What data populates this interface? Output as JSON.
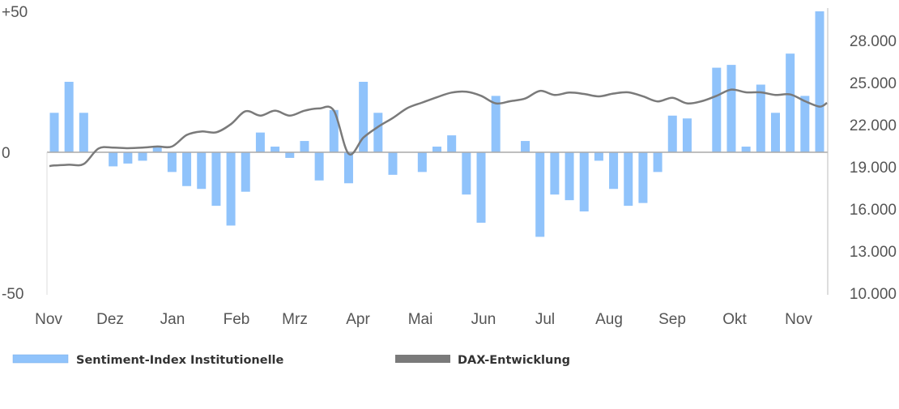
{
  "chart_data": {
    "type": "bar+line",
    "title": "",
    "x_tick_labels": [
      "Nov",
      "Dez",
      "Jan",
      "Feb",
      "Mrz",
      "Apr",
      "Mai",
      "Jun",
      "Jul",
      "Aug",
      "Sep",
      "Okt",
      "Nov"
    ],
    "y_left": {
      "ylim": [
        -50,
        50
      ],
      "tick_labels": [
        "+50",
        "0",
        "-50"
      ],
      "ticks": [
        50,
        0,
        -50
      ]
    },
    "y_right": {
      "ylim": [
        10000,
        28000
      ],
      "ticks": [
        28000,
        25000,
        22000,
        19000,
        16000,
        13000,
        10000
      ],
      "tick_labels": [
        "28.000",
        "25.000",
        "22.000",
        "19.000",
        "16.000",
        "13.000",
        "10.000"
      ]
    },
    "grid": false,
    "legend_placement": "bottom",
    "series": [
      {
        "name": "Sentiment-Index Institutionelle",
        "type": "bar",
        "axis": "left",
        "color": "#90C3FB",
        "values": [
          14,
          25,
          14,
          0,
          -5,
          -4,
          -3,
          2,
          -7,
          -12,
          -13,
          -19,
          -26,
          -14,
          7,
          2,
          -2,
          4,
          -10,
          15,
          -11,
          25,
          14,
          -8,
          0,
          -7,
          2,
          6,
          -15,
          -25,
          20,
          0,
          4,
          -30,
          -15,
          -17,
          -21,
          -3,
          -13,
          -19,
          -18,
          -7,
          13,
          12,
          0,
          30,
          31,
          2,
          24,
          14,
          35,
          20,
          50
        ]
      },
      {
        "name": "DAX-Entwicklung",
        "type": "line",
        "axis": "right",
        "color": "#7A7A7A",
        "values": [
          19100,
          19150,
          19200,
          20300,
          20370,
          20330,
          20370,
          20450,
          20450,
          21270,
          21520,
          21460,
          22040,
          22960,
          22650,
          23000,
          22650,
          23000,
          23160,
          23000,
          19930,
          21080,
          21850,
          22480,
          23190,
          23580,
          23960,
          24290,
          24350,
          24060,
          23520,
          23680,
          23870,
          24410,
          24120,
          24290,
          24190,
          24020,
          24220,
          24310,
          24020,
          23660,
          23920,
          23520,
          23680,
          24060,
          24500,
          24310,
          24310,
          24120,
          24160,
          23680,
          23290
        ]
      }
    ]
  }
}
